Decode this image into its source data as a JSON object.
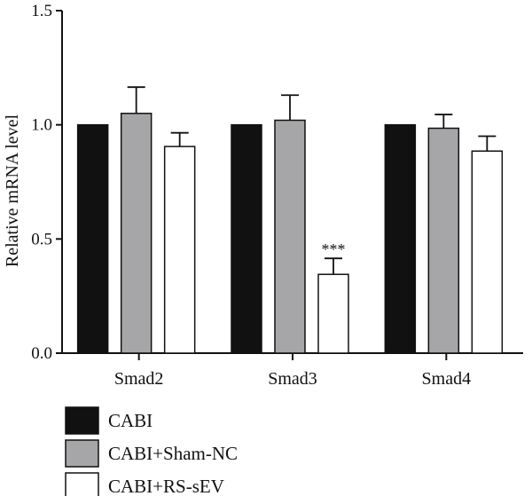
{
  "chart_data": {
    "type": "bar",
    "ylabel": "Relative mRNA level",
    "xlabel": "",
    "ylim": [
      0,
      1.5
    ],
    "yticks": [
      "0.0",
      "0.5",
      "1.0",
      "1.5"
    ],
    "categories": [
      "Smad2",
      "Smad3",
      "Smad4"
    ],
    "series": [
      {
        "name": "CABI",
        "color": "#111111",
        "values": [
          1.0,
          1.0,
          1.0
        ],
        "errors": [
          0,
          0,
          0
        ]
      },
      {
        "name": "CABI+Sham-NC",
        "color": "#a6a6a8",
        "values": [
          1.05,
          1.02,
          0.985
        ],
        "errors": [
          0.115,
          0.11,
          0.06
        ]
      },
      {
        "name": "CABI+RS-sEV",
        "color": "#ffffff",
        "values": [
          0.905,
          0.345,
          0.885
        ],
        "errors": [
          0.06,
          0.07,
          0.065
        ]
      }
    ],
    "annotations": [
      {
        "category": "Smad3",
        "series": "CABI+RS-sEV",
        "text": "***"
      }
    ],
    "grid": false,
    "legend_position": "bottom-left"
  }
}
